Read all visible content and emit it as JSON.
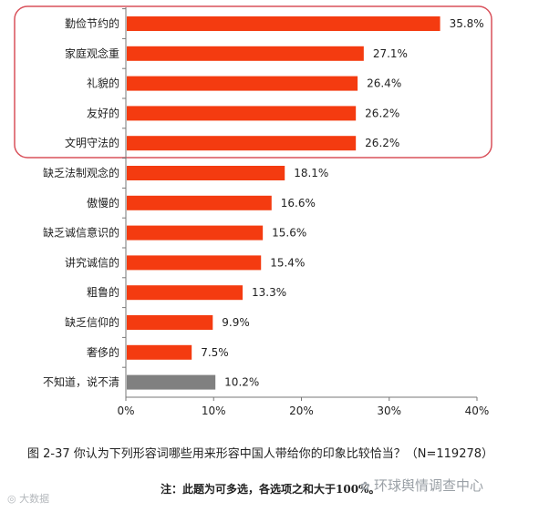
{
  "chart_data": {
    "type": "bar",
    "orientation": "horizontal",
    "categories": [
      "勤俭节约的",
      "家庭观念重",
      "礼貌的",
      "友好的",
      "文明守法的",
      "缺乏法制观念的",
      "傲慢的",
      "缺乏诚信意识的",
      "讲究诚信的",
      "粗鲁的",
      "缺乏信仰的",
      "奢侈的",
      "不知道，说不清"
    ],
    "values": [
      35.8,
      27.1,
      26.4,
      26.2,
      26.2,
      18.1,
      16.6,
      15.6,
      15.4,
      13.3,
      9.9,
      7.5,
      10.2
    ],
    "value_labels": [
      "35.8%",
      "27.1%",
      "26.4%",
      "26.2%",
      "26.2%",
      "18.1%",
      "16.6%",
      "15.6%",
      "15.4%",
      "13.3%",
      "9.9%",
      "7.5%",
      "10.2%"
    ],
    "xlim": [
      0,
      40
    ],
    "x_ticks": [
      "0%",
      "10%",
      "20%",
      "30%",
      "40%"
    ],
    "bar_color": "#f43b10",
    "other_bar_color": "#808080",
    "highlight_color": "#d9505a",
    "highlight_count": 5,
    "grid": false,
    "legend": "none"
  },
  "caption": "图 2-37  你认为下列形容词哪些用来形容中国人带给你的印象比较恰当？（N=119278）",
  "note": "注：此题为可多选，各选项之和大于100%。",
  "watermark_right": "环球舆情调查中心",
  "watermark_left": "大数据"
}
